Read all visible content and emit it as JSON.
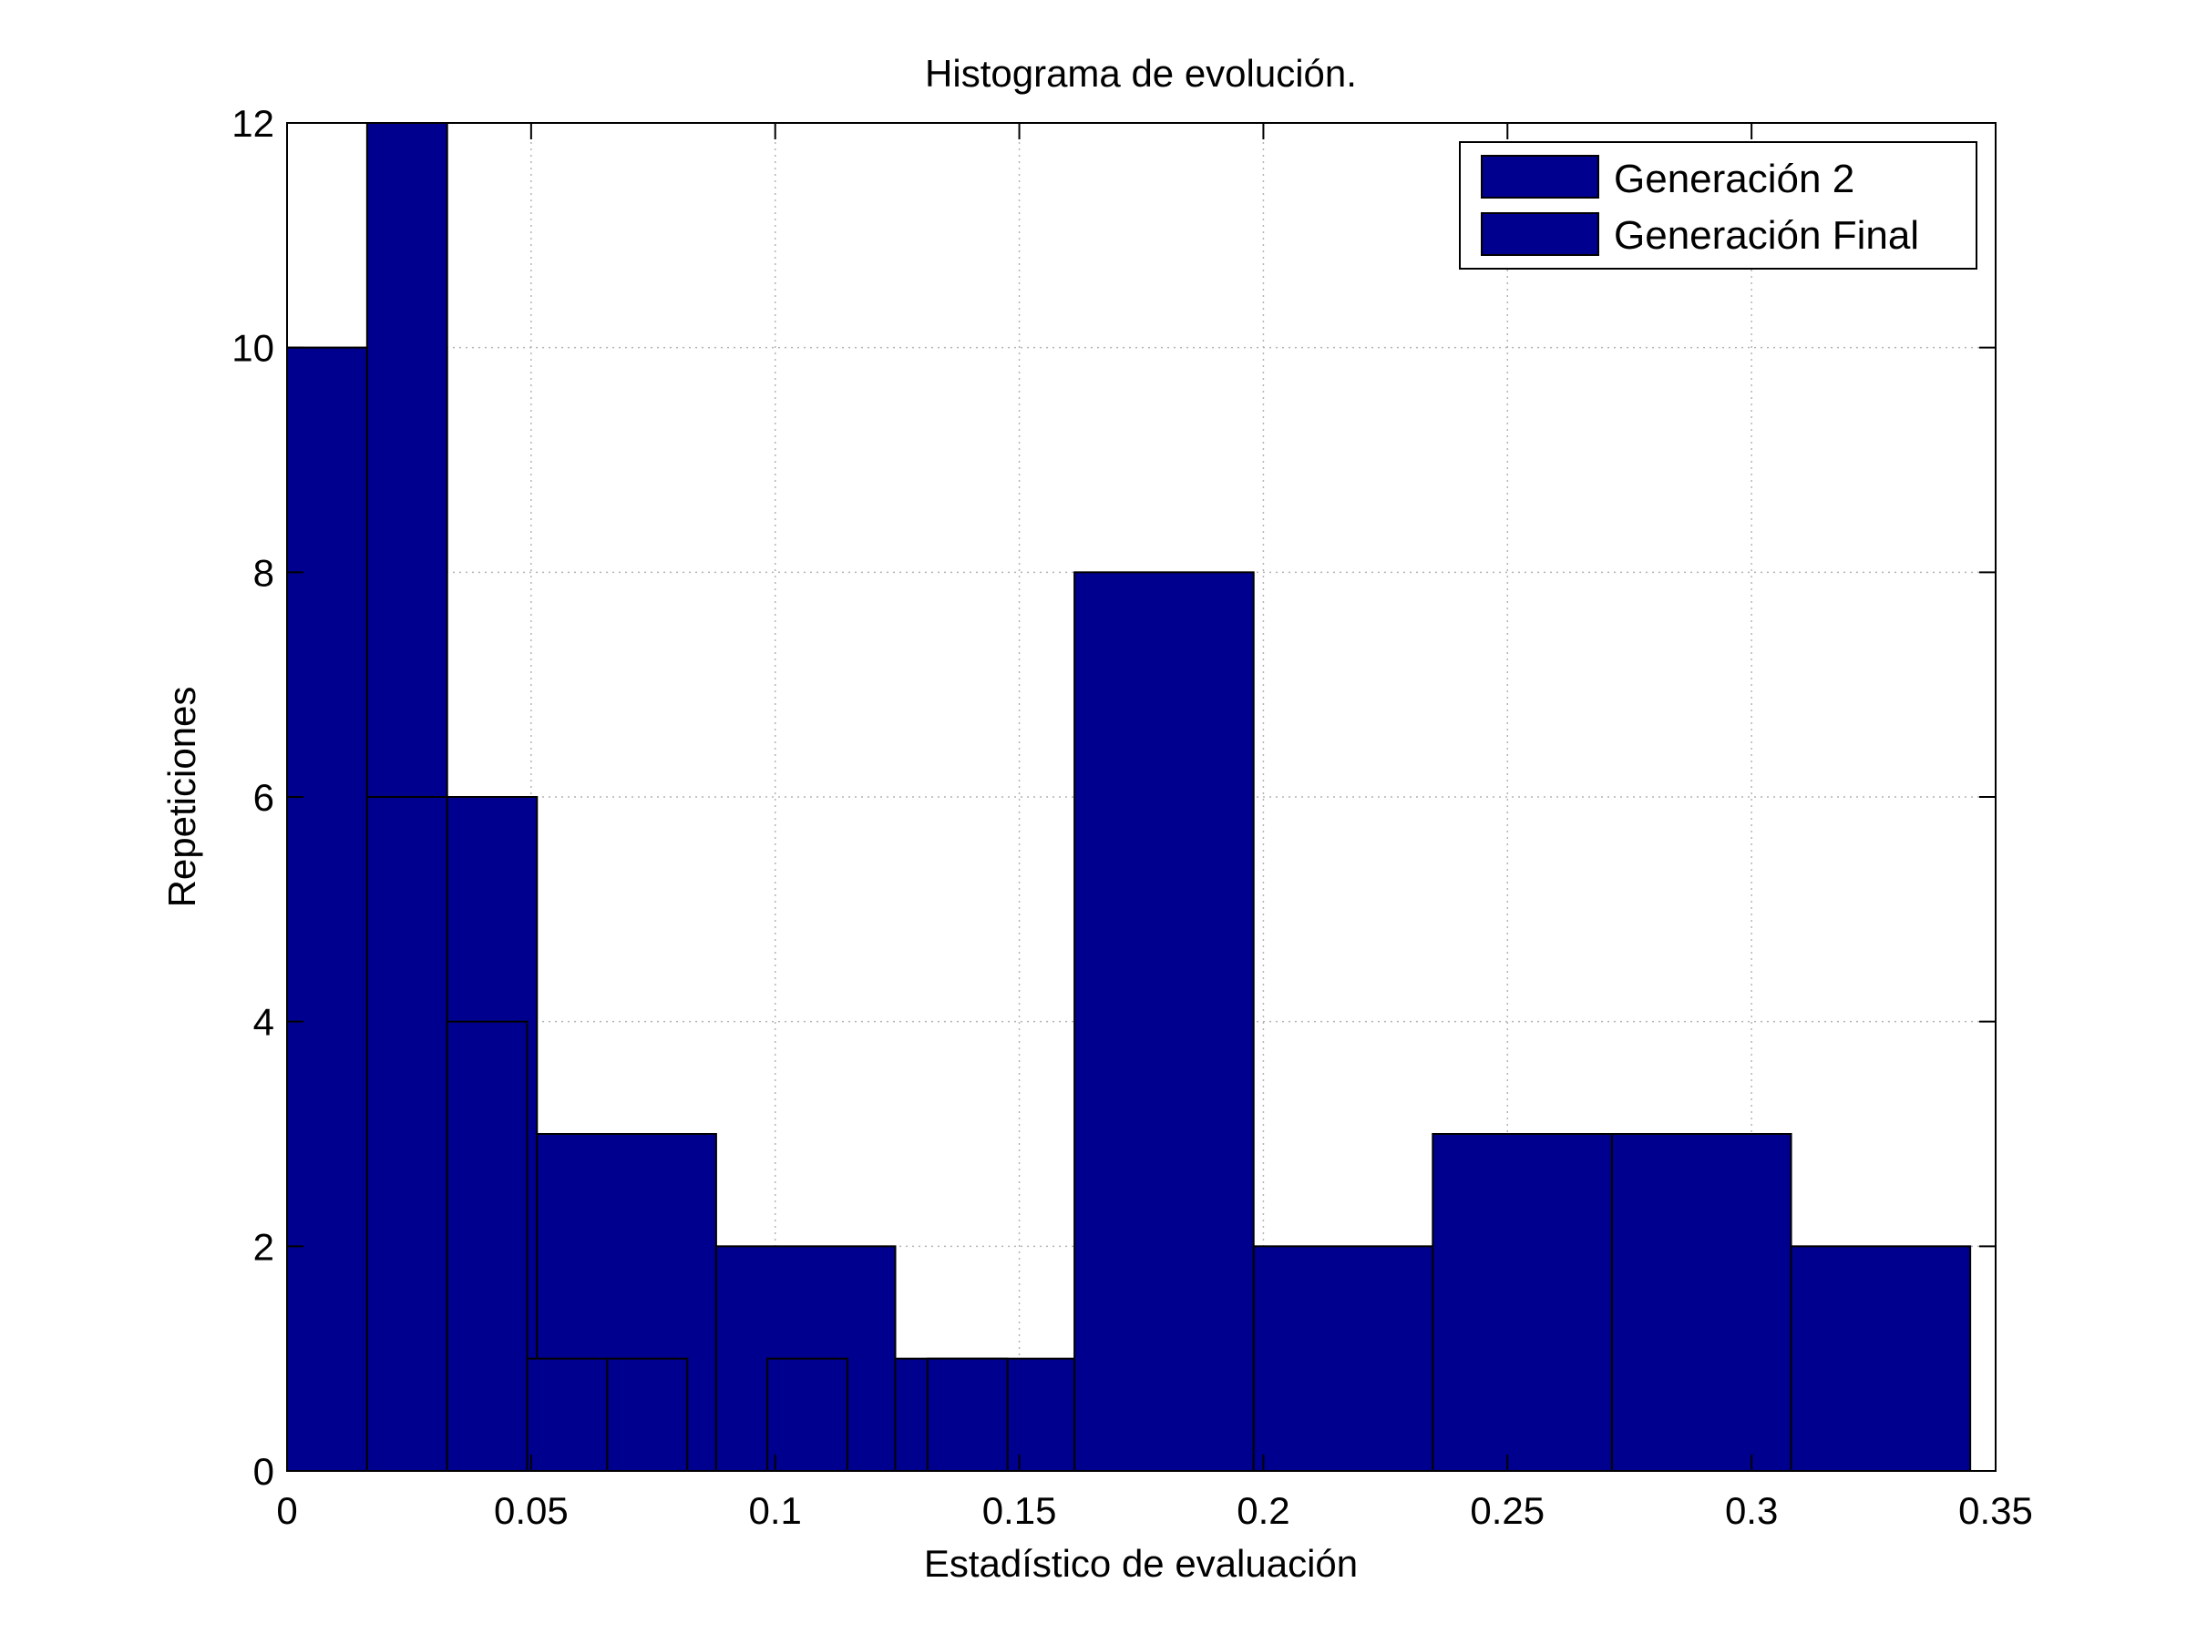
{
  "chart_data": {
    "type": "bar",
    "subtype": "overlaid-histogram",
    "title": "Histograma de evolución.",
    "xlabel": "Estadístico de evaluación",
    "ylabel": "Repeticiones",
    "xlim": [
      0,
      0.35
    ],
    "ylim": [
      0,
      12
    ],
    "xticks": [
      "0",
      "0.05",
      "0.1",
      "0.15",
      "0.2",
      "0.25",
      "0.3",
      "0.35"
    ],
    "yticks": [
      "0",
      "2",
      "4",
      "6",
      "8",
      "10",
      "12"
    ],
    "grid": true,
    "legend_position": "top-right",
    "bar_color": "#00008f",
    "series": [
      {
        "name": "Generación 2",
        "bins": [
          {
            "x0": 0.0,
            "x1": 0.0164,
            "value": 10
          },
          {
            "x0": 0.0164,
            "x1": 0.0328,
            "value": 12
          },
          {
            "x0": 0.0328,
            "x1": 0.0512,
            "value": 6
          },
          {
            "x0": 0.0512,
            "x1": 0.0879,
            "value": 3
          },
          {
            "x0": 0.0879,
            "x1": 0.1246,
            "value": 2
          },
          {
            "x0": 0.1246,
            "x1": 0.1613,
            "value": 1
          },
          {
            "x0": 0.1613,
            "x1": 0.198,
            "value": 8
          },
          {
            "x0": 0.198,
            "x1": 0.2347,
            "value": 2
          },
          {
            "x0": 0.2347,
            "x1": 0.2714,
            "value": 3
          },
          {
            "x0": 0.2714,
            "x1": 0.3081,
            "value": 3
          },
          {
            "x0": 0.3081,
            "x1": 0.3448,
            "value": 2
          }
        ]
      },
      {
        "name": "Generación Final",
        "bins": [
          {
            "x0": 0.0,
            "x1": 0.0164,
            "value": 10
          },
          {
            "x0": 0.0164,
            "x1": 0.0328,
            "value": 6
          },
          {
            "x0": 0.0328,
            "x1": 0.0492,
            "value": 4
          },
          {
            "x0": 0.0492,
            "x1": 0.0656,
            "value": 1
          },
          {
            "x0": 0.0656,
            "x1": 0.082,
            "value": 1
          },
          {
            "x0": 0.082,
            "x1": 0.0984,
            "value": 0
          },
          {
            "x0": 0.0984,
            "x1": 0.1148,
            "value": 1
          },
          {
            "x0": 0.1148,
            "x1": 0.1312,
            "value": 0
          },
          {
            "x0": 0.1312,
            "x1": 0.1476,
            "value": 1
          }
        ]
      }
    ]
  }
}
